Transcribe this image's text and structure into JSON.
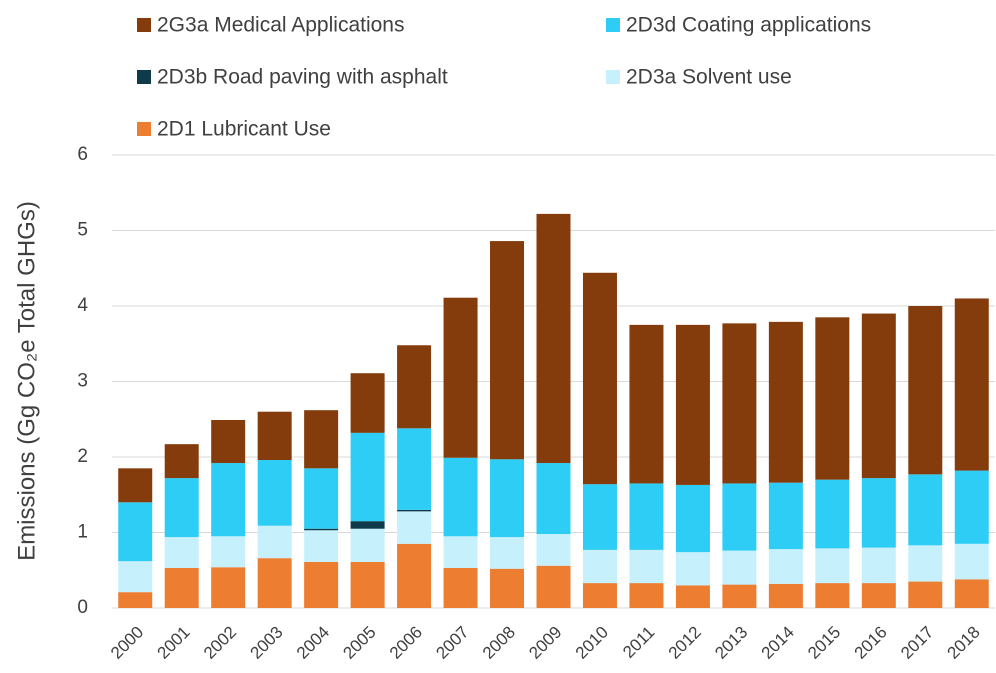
{
  "chart_data": {
    "type": "stacked_bar",
    "y_axis_label": "Emissions (Gg CO₂e Total GHGs)",
    "categories": [
      "2000",
      "2001",
      "2002",
      "2003",
      "2004",
      "2005",
      "2006",
      "2007",
      "2008",
      "2009",
      "2010",
      "2011",
      "2012",
      "2013",
      "2014",
      "2015",
      "2016",
      "2017",
      "2018"
    ],
    "series": [
      {
        "name": "2D1 Lubricant Use",
        "color": "#ed7d31",
        "values": [
          0.21,
          0.53,
          0.54,
          0.66,
          0.61,
          0.61,
          0.85,
          0.53,
          0.52,
          0.56,
          0.33,
          0.33,
          0.3,
          0.31,
          0.32,
          0.33,
          0.33,
          0.35,
          0.38
        ]
      },
      {
        "name": "2D3a Solvent use",
        "color": "#c5f0fc",
        "values": [
          0.41,
          0.41,
          0.41,
          0.43,
          0.42,
          0.44,
          0.43,
          0.42,
          0.42,
          0.42,
          0.44,
          0.44,
          0.44,
          0.45,
          0.46,
          0.46,
          0.47,
          0.48,
          0.47
        ]
      },
      {
        "name": "2D3b Road paving with asphalt",
        "color": "#0e3a4a",
        "values": [
          0,
          0,
          0,
          0,
          0.02,
          0.1,
          0.02,
          0,
          0,
          0,
          0,
          0,
          0,
          0,
          0,
          0,
          0,
          0,
          0
        ]
      },
      {
        "name": "2D3d Coating applications",
        "color": "#2ecdf5",
        "values": [
          0.78,
          0.78,
          0.97,
          0.87,
          0.8,
          1.17,
          1.08,
          1.04,
          1.03,
          0.94,
          0.87,
          0.88,
          0.89,
          0.89,
          0.88,
          0.91,
          0.92,
          0.94,
          0.97
        ]
      },
      {
        "name": "2G3a Medical Applications",
        "color": "#843c0c",
        "values": [
          0.45,
          0.45,
          0.57,
          0.64,
          0.77,
          0.79,
          1.1,
          2.12,
          2.89,
          3.3,
          2.8,
          2.1,
          2.12,
          2.12,
          2.13,
          2.15,
          2.18,
          2.23,
          2.28
        ]
      }
    ],
    "ylim": [
      0,
      6
    ],
    "yticks": [
      0,
      1,
      2,
      3,
      4,
      5,
      6
    ],
    "grid": true
  }
}
